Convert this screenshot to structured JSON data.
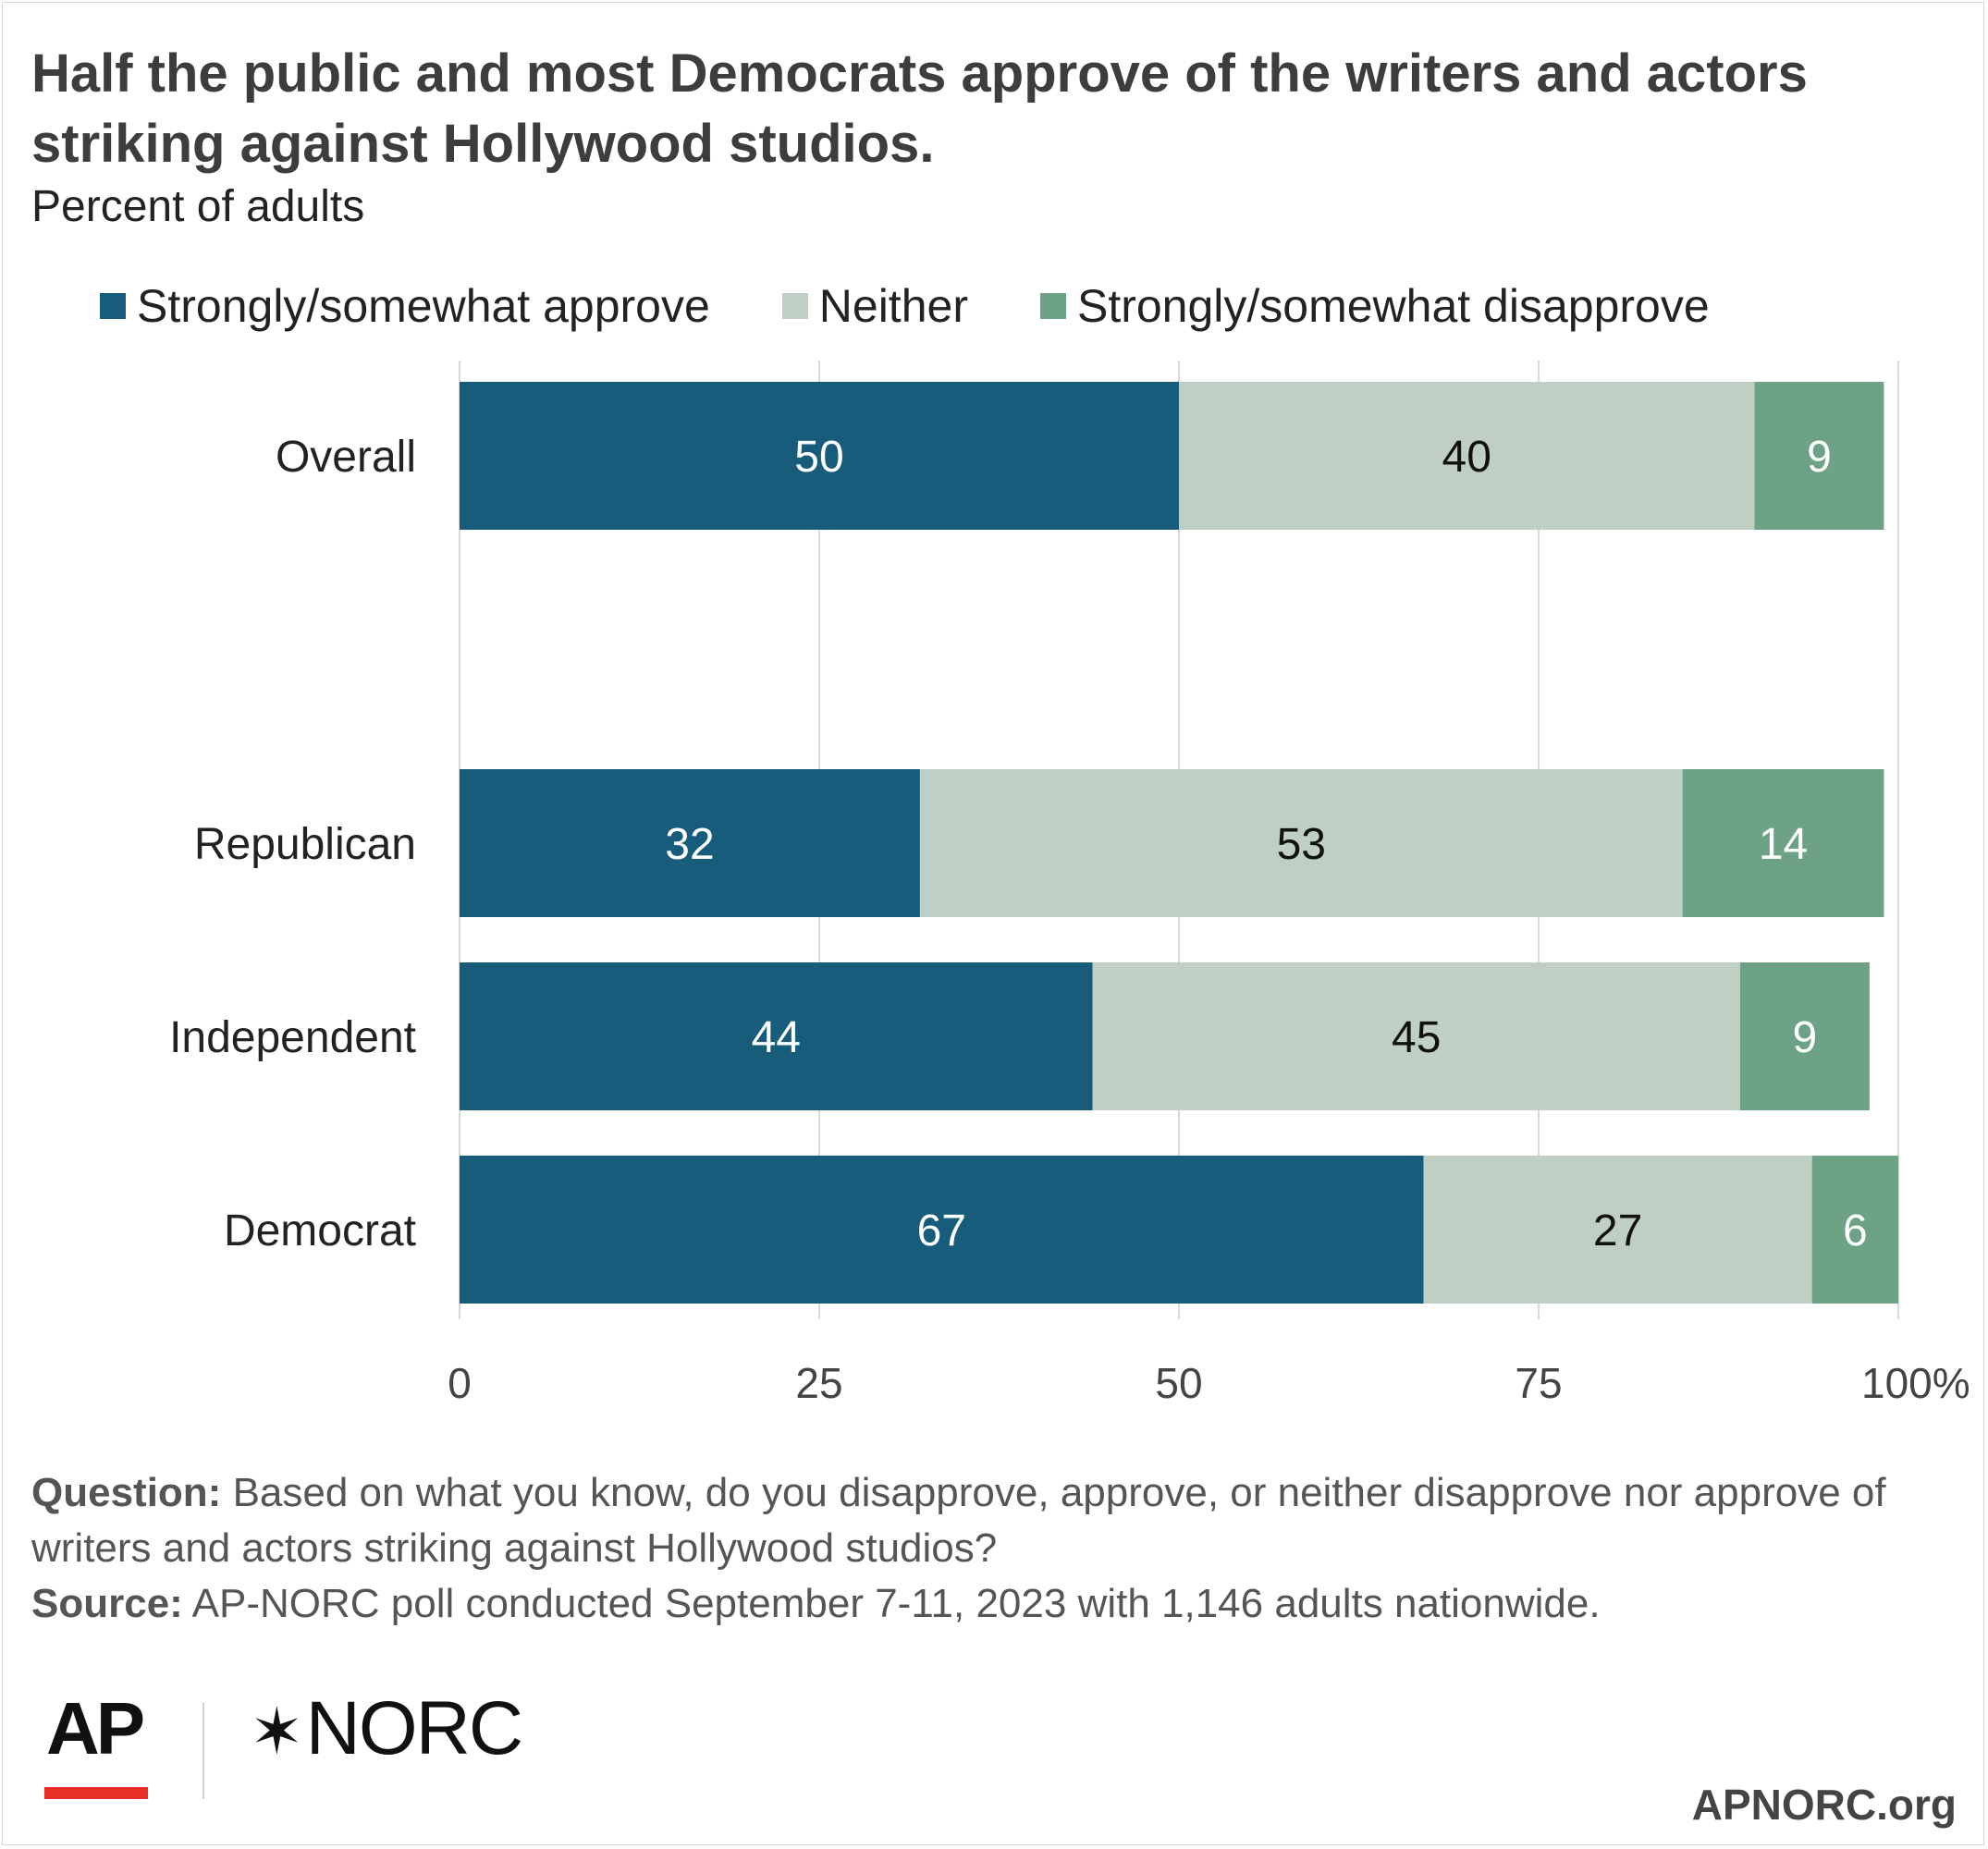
{
  "title": "Half the public and most Democrats approve of the writers and actors striking against Hollywood studios.",
  "subtitle": "Percent of adults",
  "chart_data": {
    "type": "bar",
    "orientation": "horizontal",
    "stacked": true,
    "categories": [
      "Overall",
      "Republican",
      "Independent",
      "Democrat"
    ],
    "series": [
      {
        "name": "Strongly/somewhat approve",
        "values": [
          50,
          32,
          44,
          67
        ],
        "color": "#175c7b"
      },
      {
        "name": "Neither",
        "values": [
          40,
          53,
          45,
          27
        ],
        "color": "#bfcfc3"
      },
      {
        "name": "Strongly/somewhat disapprove",
        "values": [
          9,
          14,
          9,
          6
        ],
        "color": "#6da286"
      }
    ],
    "xlim": [
      0,
      100
    ],
    "x_ticks": [
      "0",
      "25",
      "50",
      "75",
      "100%"
    ],
    "grid": true,
    "legend": "top"
  },
  "notes": {
    "question_label": "Question:",
    "question_text": "Based on what you know, do you disapprove, approve, or neither disapprove nor approve of writers and actors striking against Hollywood studios?",
    "source_label": "Source:",
    "source_text": "AP-NORC poll conducted September 7-11, 2023 with 1,146 adults nationwide."
  },
  "branding": {
    "ap_logo": "AP",
    "norc_logo": "NORC",
    "norc_star": "✶",
    "site": "APNORC.org"
  }
}
